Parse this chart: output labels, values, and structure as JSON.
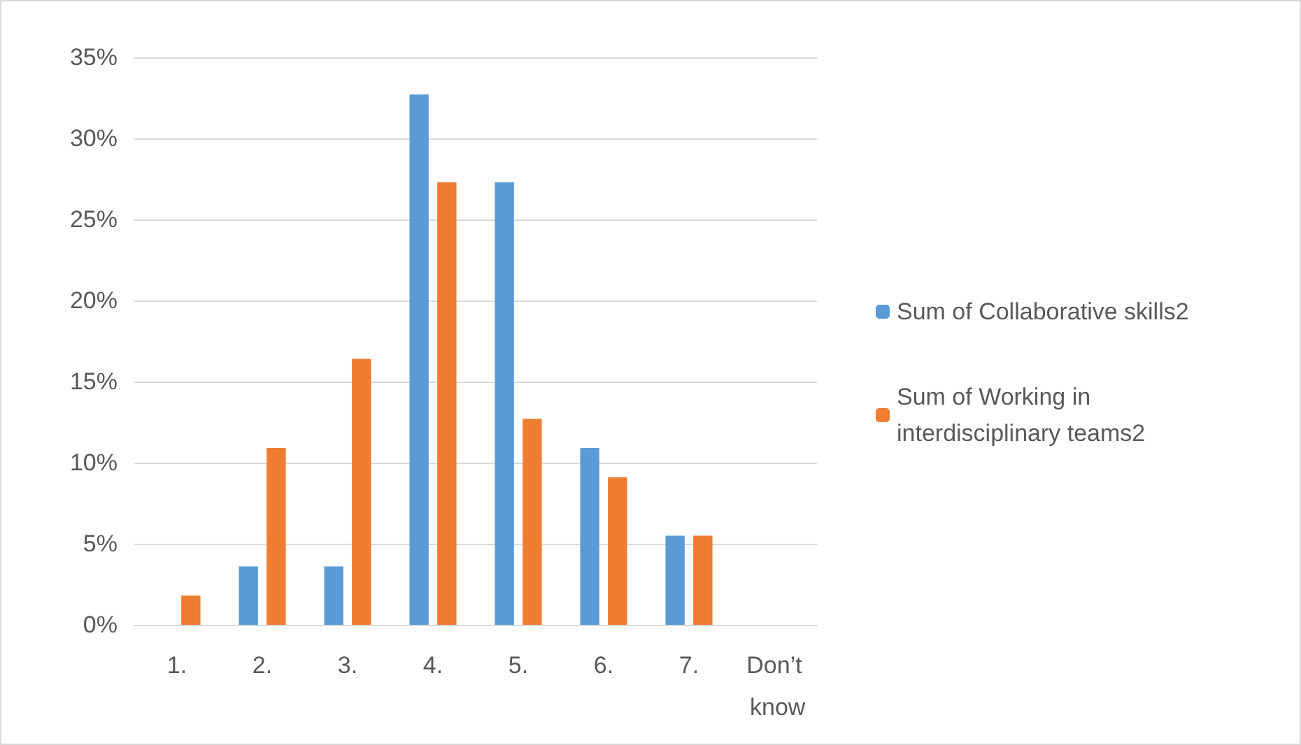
{
  "chart_data": {
    "type": "bar",
    "categories": [
      "1.",
      "2.",
      "3.",
      "4.",
      "5.",
      "6.",
      "7.",
      "Don’t know"
    ],
    "series": [
      {
        "name": "Sum of Collaborative skills2",
        "color": "#5b9bd5",
        "values": [
          0,
          3.6,
          3.6,
          32.7,
          27.3,
          10.9,
          5.5,
          0
        ]
      },
      {
        "name": "Sum of Working in interdisciplinary teams2",
        "color": "#ed7d31",
        "values": [
          1.8,
          10.9,
          16.4,
          27.3,
          12.7,
          9.1,
          5.5,
          0
        ]
      }
    ],
    "ylim": [
      0,
      35
    ],
    "yticks": [
      {
        "value": 0,
        "label": "0%"
      },
      {
        "value": 5,
        "label": "5%"
      },
      {
        "value": 10,
        "label": "10%"
      },
      {
        "value": 15,
        "label": "15%"
      },
      {
        "value": 20,
        "label": "20%"
      },
      {
        "value": 25,
        "label": "25%"
      },
      {
        "value": 30,
        "label": "30%"
      },
      {
        "value": 35,
        "label": "35%"
      }
    ],
    "grid": "y",
    "legend": "right"
  }
}
